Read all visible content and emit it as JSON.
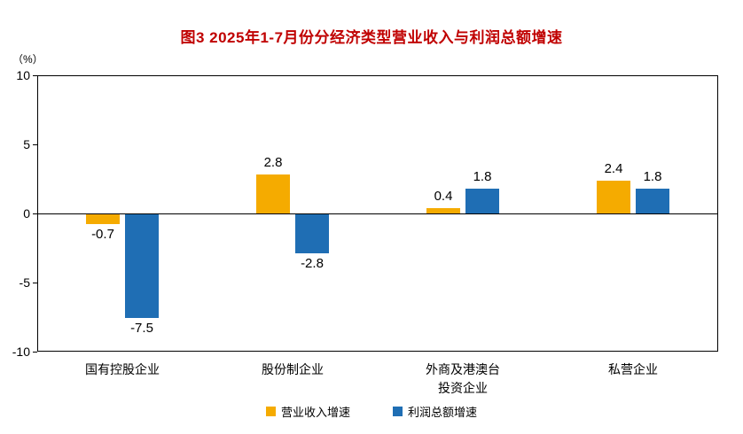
{
  "title": "图3 2025年1-7月份分经济类型营业收入与利润总额增速",
  "y_axis": {
    "unit_label": "（%）",
    "ticks": [
      10,
      5,
      0,
      -5,
      -10
    ]
  },
  "legend": [
    {
      "label": "营业收入增速",
      "color": "#f5ab00"
    },
    {
      "label": "利润总额增速",
      "color": "#1f6eb4"
    }
  ],
  "chart_data": {
    "type": "bar",
    "title": "图3 2025年1-7月份分经济类型营业收入与利润总额增速",
    "ylabel": "（%）",
    "ylim": [
      -10,
      10
    ],
    "grid": false,
    "legend_position": "bottom",
    "categories": [
      "国有控股企业",
      "股份制企业",
      "外商及港澳台\n投资企业",
      "私营企业"
    ],
    "series": [
      {
        "name": "营业收入增速",
        "color": "#f5ab00",
        "values": [
          -0.7,
          2.8,
          0.4,
          2.4
        ]
      },
      {
        "name": "利润总额增速",
        "color": "#1f6eb4",
        "values": [
          -7.5,
          -2.8,
          1.8,
          1.8
        ]
      }
    ]
  }
}
